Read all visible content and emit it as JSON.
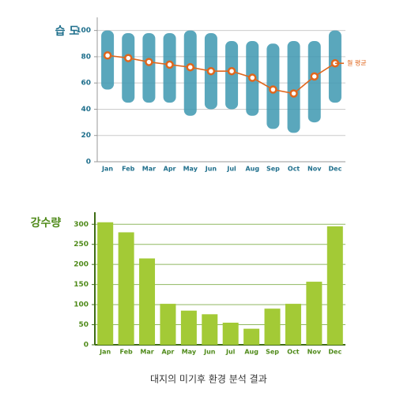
{
  "chart_data": [
    {
      "type": "range-line",
      "title": "습 도",
      "categories": [
        "Jan",
        "Feb",
        "Mar",
        "Apr",
        "May",
        "Jun",
        "Jul",
        "Aug",
        "Sep",
        "Oct",
        "Nov",
        "Dec"
      ],
      "ranges": {
        "color": "#3d98b0",
        "low": [
          55,
          45,
          45,
          45,
          35,
          40,
          40,
          35,
          25,
          22,
          30,
          45
        ],
        "high": [
          100,
          98,
          98,
          98,
          100,
          98,
          92,
          92,
          90,
          92,
          92,
          100
        ]
      },
      "series": [
        {
          "name": "월 평균",
          "color": "#e0661c",
          "values": [
            81,
            79,
            76,
            74,
            72,
            69,
            69,
            64,
            55,
            52,
            65,
            75
          ]
        }
      ],
      "ylim": [
        0,
        110
      ],
      "yticks": [
        0,
        20,
        40,
        60,
        80,
        100
      ],
      "grid": true
    },
    {
      "type": "bar",
      "title": "강수량",
      "categories": [
        "Jan",
        "Feb",
        "Mar",
        "Apr",
        "May",
        "Jun",
        "Jul",
        "Aug",
        "Sep",
        "Oct",
        "Nov",
        "Dec"
      ],
      "values": [
        305,
        280,
        215,
        102,
        85,
        76,
        55,
        40,
        90,
        102,
        157,
        295
      ],
      "color": "#a3ca36",
      "ylim": [
        0,
        330
      ],
      "yticks": [
        0,
        50,
        100,
        150,
        200,
        250,
        300
      ],
      "grid": true
    }
  ],
  "caption": "대지의 미기후 환경 분석 결과"
}
